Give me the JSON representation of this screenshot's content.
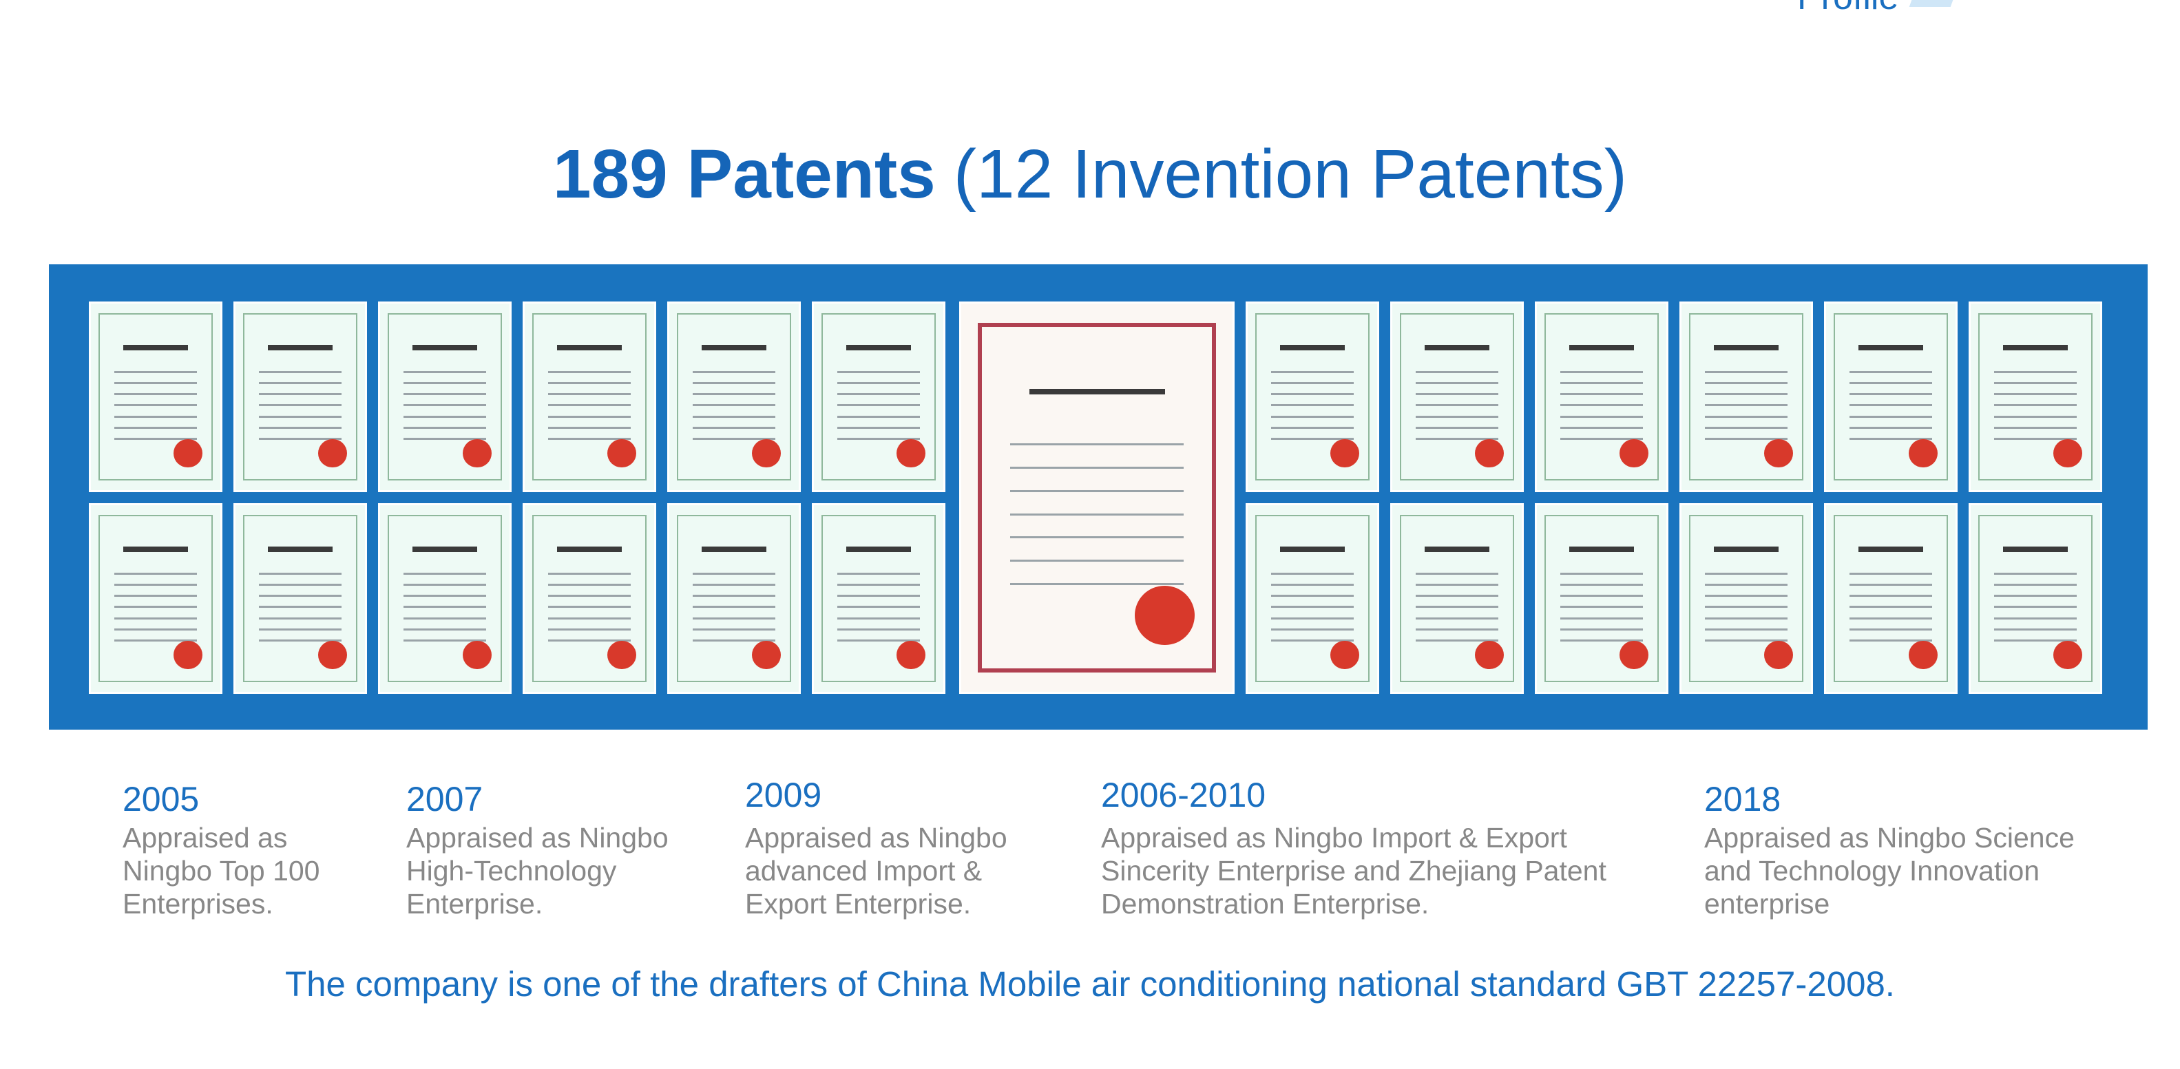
{
  "header": {
    "tag": "Profile"
  },
  "title": {
    "bold": "189 Patents",
    "rest": "(12 Invention Patents)"
  },
  "milestones": [
    {
      "year": "2005",
      "lines": [
        "Appraised as",
        "Ningbo Top 100",
        "Enterprises."
      ]
    },
    {
      "year": "2007",
      "lines": [
        "Appraised as Ningbo",
        "High-Technology",
        "Enterprise."
      ]
    },
    {
      "year": "2009",
      "lines": [
        "Appraised as Ningbo",
        "advanced Import &",
        "Export Enterprise."
      ]
    },
    {
      "year": "2006-2010",
      "lines": [
        "Appraised as  Ningbo Import & Export",
        "Sincerity Enterprise and Zhejiang Patent",
        "Demonstration Enterprise."
      ]
    },
    {
      "year": "2018",
      "lines": [
        "Appraised as Ningbo Science",
        "and Technology Innovation",
        "enterprise"
      ]
    }
  ],
  "footer": "The company is one of the drafters of China Mobile air conditioning national standard GBT 22257-2008."
}
